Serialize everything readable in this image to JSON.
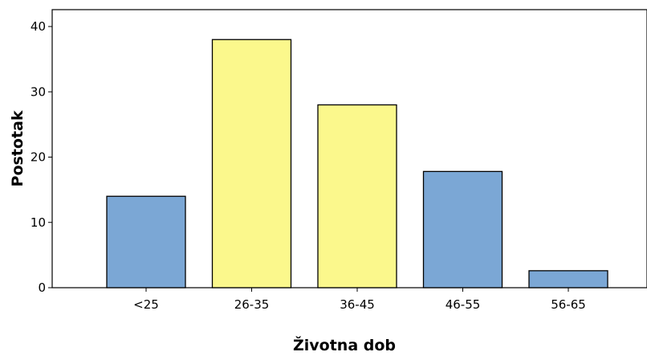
{
  "chart_data": {
    "type": "bar",
    "title": "",
    "xlabel": "Životna dob",
    "ylabel": "Postotak",
    "categories": [
      "<25",
      "26-35",
      "36-45",
      "46-55",
      "56-65"
    ],
    "values": [
      14,
      38,
      28,
      17.8,
      2.6
    ],
    "bar_colors": [
      "#7ba7d5",
      "#fbf88c",
      "#fbf88c",
      "#7ba7d5",
      "#7ba7d5"
    ],
    "ylim": [
      0,
      40
    ],
    "yticks": [
      0,
      10,
      20,
      30,
      40
    ],
    "grid": false,
    "legend": "none"
  },
  "colors": {
    "background": "#ffffff",
    "axis": "#000000",
    "bar_outline": "#000000"
  }
}
